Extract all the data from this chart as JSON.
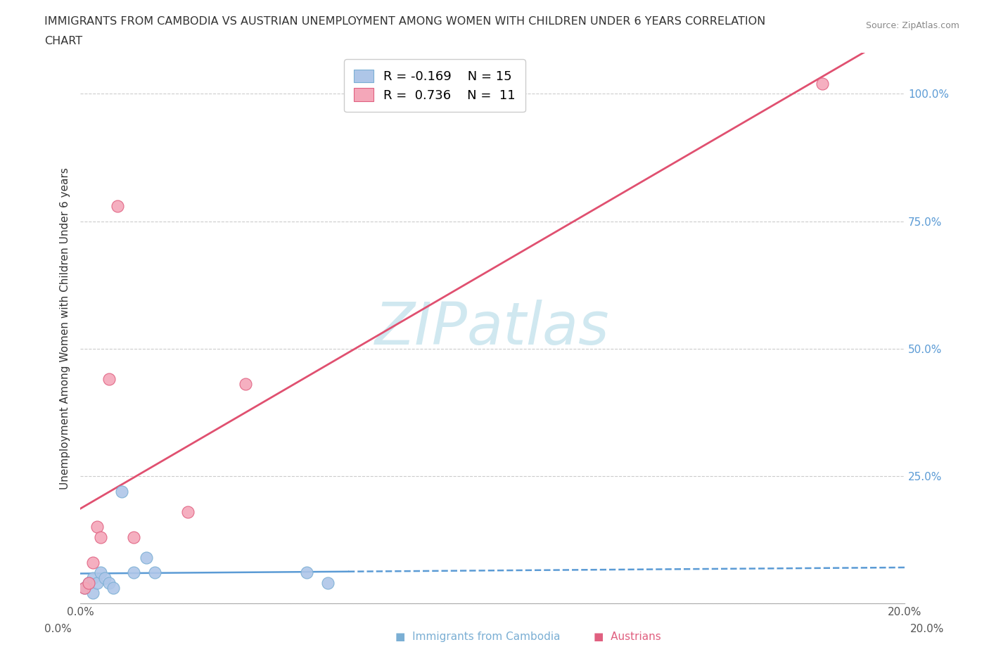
{
  "title_line1": "IMMIGRANTS FROM CAMBODIA VS AUSTRIAN UNEMPLOYMENT AMONG WOMEN WITH CHILDREN UNDER 6 YEARS CORRELATION",
  "title_line2": "CHART",
  "source_text": "Source: ZipAtlas.com",
  "ylabel": "Unemployment Among Women with Children Under 6 years",
  "xlim": [
    0.0,
    0.2
  ],
  "ylim": [
    0.0,
    1.08
  ],
  "yticks": [
    0.0,
    0.25,
    0.5,
    0.75,
    1.0
  ],
  "ytick_labels": [
    "",
    "25.0%",
    "50.0%",
    "75.0%",
    "100.0%"
  ],
  "xticks": [
    0.0,
    0.025,
    0.05,
    0.075,
    0.1,
    0.125,
    0.15,
    0.175,
    0.2
  ],
  "xtick_labels": [
    "0.0%",
    "",
    "",
    "",
    "",
    "",
    "",
    "",
    "20.0%"
  ],
  "background_color": "#ffffff",
  "grid_color": "#cccccc",
  "cambodia_x": [
    0.001,
    0.002,
    0.003,
    0.003,
    0.004,
    0.005,
    0.006,
    0.007,
    0.008,
    0.01,
    0.013,
    0.016,
    0.018,
    0.055,
    0.06
  ],
  "cambodia_y": [
    0.03,
    0.04,
    0.02,
    0.05,
    0.04,
    0.06,
    0.05,
    0.04,
    0.03,
    0.22,
    0.06,
    0.09,
    0.06,
    0.06,
    0.04
  ],
  "cambodia_color": "#aec6e8",
  "cambodia_edge_color": "#7bafd4",
  "cambodia_label": "Immigrants from Cambodia",
  "cambodia_R": -0.169,
  "cambodia_N": 15,
  "cambodia_trend_color": "#5b9bd5",
  "austrians_x": [
    0.001,
    0.002,
    0.003,
    0.004,
    0.005,
    0.007,
    0.009,
    0.013,
    0.026,
    0.04,
    0.18
  ],
  "austrians_y": [
    0.03,
    0.04,
    0.08,
    0.15,
    0.13,
    0.44,
    0.78,
    0.13,
    0.18,
    0.43,
    1.02
  ],
  "austrians_color": "#f4a7b9",
  "austrians_edge_color": "#e06080",
  "austrians_label": "Austrians",
  "austrians_R": 0.736,
  "austrians_N": 11,
  "austrians_trend_color": "#e05070",
  "watermark_text": "ZIPatlas",
  "watermark_color": "#d0e8f0",
  "watermark_fontsize": 60,
  "legend_R1": "R = -0.169",
  "legend_N1": "N = 15",
  "legend_R2": "R =  0.736",
  "legend_N2": "N =  11"
}
